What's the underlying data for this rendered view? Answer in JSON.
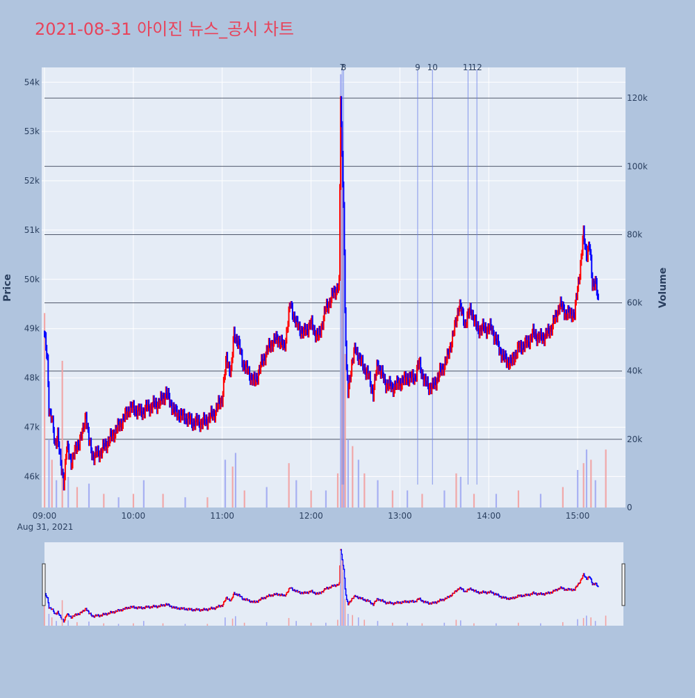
{
  "chart_title": "2021-08-31 아이진 뉴스_공시 차트",
  "colors": {
    "page_bg": "#b0c4de",
    "plot_bg": "#e5ecf6",
    "grid": "#ffffff",
    "title": "#e8435a",
    "up": "#ff0000",
    "down": "#0000ff",
    "axis_text": "#2a3f5f",
    "news_line": "#6a7fe8",
    "volume_hline": "#4d5568"
  },
  "chart_data": {
    "type": "candlestick",
    "title": "2021-08-31 아이진 뉴스_공시 차트",
    "ylabel": "Price",
    "y2label": "Volume",
    "date_label": "Aug 31, 2021",
    "x_ticks": [
      "09:00",
      "10:00",
      "11:00",
      "12:00",
      "13:00",
      "14:00",
      "15:00"
    ],
    "x_range": [
      "09:00",
      "15:30"
    ],
    "y_ticks": [
      "46k",
      "47k",
      "48k",
      "49k",
      "50k",
      "51k",
      "52k",
      "53k",
      "54k"
    ],
    "y_tick_values": [
      46000,
      47000,
      48000,
      49000,
      50000,
      51000,
      52000,
      53000,
      54000
    ],
    "ylim": [
      45370,
      54300
    ],
    "y2_ticks": [
      "0",
      "20k",
      "40k",
      "60k",
      "80k",
      "100k",
      "120k"
    ],
    "y2_tick_values": [
      0,
      20000,
      40000,
      60000,
      80000,
      100000,
      120000
    ],
    "y2lim": [
      0,
      129000
    ],
    "grid": true,
    "news_markers": [
      {
        "label": "7",
        "time": "12:21"
      },
      {
        "label": "8",
        "time": "12:22"
      },
      {
        "label": "9",
        "time": "13:12"
      },
      {
        "label": "10",
        "time": "13:22"
      },
      {
        "label": "11",
        "time": "13:46"
      },
      {
        "label": "12",
        "time": "13:52"
      }
    ],
    "price_path": [
      [
        "09:00",
        48900
      ],
      [
        "09:02",
        48300
      ],
      [
        "09:03",
        47400
      ],
      [
        "09:05",
        47200
      ],
      [
        "09:07",
        46600
      ],
      [
        "09:09",
        46900
      ],
      [
        "09:11",
        46200
      ],
      [
        "09:13",
        45900
      ],
      [
        "09:15",
        46600
      ],
      [
        "09:18",
        46300
      ],
      [
        "09:22",
        46600
      ],
      [
        "09:26",
        46900
      ],
      [
        "09:28",
        47300
      ],
      [
        "09:30",
        46700
      ],
      [
        "09:33",
        46400
      ],
      [
        "09:38",
        46500
      ],
      [
        "09:45",
        46800
      ],
      [
        "09:52",
        47100
      ],
      [
        "09:58",
        47400
      ],
      [
        "10:05",
        47300
      ],
      [
        "10:10",
        47400
      ],
      [
        "10:18",
        47500
      ],
      [
        "10:22",
        47700
      ],
      [
        "10:28",
        47300
      ],
      [
        "10:35",
        47200
      ],
      [
        "10:40",
        47100
      ],
      [
        "10:48",
        47100
      ],
      [
        "10:55",
        47300
      ],
      [
        "11:00",
        47600
      ],
      [
        "11:03",
        48400
      ],
      [
        "11:06",
        48100
      ],
      [
        "11:08",
        48900
      ],
      [
        "11:11",
        48700
      ],
      [
        "11:14",
        48300
      ],
      [
        "11:18",
        48100
      ],
      [
        "11:22",
        47900
      ],
      [
        "11:28",
        48400
      ],
      [
        "11:33",
        48700
      ],
      [
        "11:38",
        48800
      ],
      [
        "11:42",
        48600
      ],
      [
        "11:46",
        49500
      ],
      [
        "11:50",
        49100
      ],
      [
        "11:55",
        48900
      ],
      [
        "12:00",
        49100
      ],
      [
        "12:05",
        48800
      ],
      [
        "12:10",
        49400
      ],
      [
        "12:15",
        49700
      ],
      [
        "12:19",
        49900
      ],
      [
        "12:20",
        53700
      ],
      [
        "12:21",
        52500
      ],
      [
        "12:22",
        51600
      ],
      [
        "12:23",
        49400
      ],
      [
        "12:24",
        48100
      ],
      [
        "12:25",
        47700
      ],
      [
        "12:27",
        48200
      ],
      [
        "12:30",
        48600
      ],
      [
        "12:34",
        48300
      ],
      [
        "12:38",
        48100
      ],
      [
        "12:42",
        47700
      ],
      [
        "12:45",
        48300
      ],
      [
        "12:50",
        47900
      ],
      [
        "12:55",
        47800
      ],
      [
        "13:00",
        47900
      ],
      [
        "13:05",
        48000
      ],
      [
        "13:10",
        48000
      ],
      [
        "13:13",
        48300
      ],
      [
        "13:17",
        47900
      ],
      [
        "13:22",
        47800
      ],
      [
        "13:27",
        48100
      ],
      [
        "13:32",
        48400
      ],
      [
        "13:37",
        49000
      ],
      [
        "13:40",
        49500
      ],
      [
        "13:44",
        49100
      ],
      [
        "13:48",
        49400
      ],
      [
        "13:52",
        49000
      ],
      [
        "13:58",
        49000
      ],
      [
        "14:02",
        49000
      ],
      [
        "14:07",
        48600
      ],
      [
        "14:10",
        48400
      ],
      [
        "14:15",
        48300
      ],
      [
        "14:20",
        48600
      ],
      [
        "14:26",
        48700
      ],
      [
        "14:30",
        48900
      ],
      [
        "14:35",
        48800
      ],
      [
        "14:40",
        48900
      ],
      [
        "14:45",
        49200
      ],
      [
        "14:48",
        49500
      ],
      [
        "14:52",
        49300
      ],
      [
        "14:58",
        49300
      ],
      [
        "15:00",
        49800
      ],
      [
        "15:02",
        50300
      ],
      [
        "15:04",
        50900
      ],
      [
        "15:06",
        50500
      ],
      [
        "15:08",
        50700
      ],
      [
        "15:10",
        49900
      ],
      [
        "15:12",
        50000
      ],
      [
        "15:14",
        49500
      ]
    ],
    "volume_bars": [
      [
        "09:00",
        57000
      ],
      [
        "09:03",
        20000
      ],
      [
        "09:05",
        14000
      ],
      [
        "09:08",
        8000
      ],
      [
        "09:12",
        43000
      ],
      [
        "09:16",
        9000
      ],
      [
        "09:22",
        6000
      ],
      [
        "09:30",
        7000
      ],
      [
        "09:40",
        4000
      ],
      [
        "09:50",
        3000
      ],
      [
        "10:00",
        4000
      ],
      [
        "10:07",
        8000
      ],
      [
        "10:20",
        4000
      ],
      [
        "10:35",
        3000
      ],
      [
        "10:50",
        3000
      ],
      [
        "11:02",
        14000
      ],
      [
        "11:07",
        12000
      ],
      [
        "11:09",
        16000
      ],
      [
        "11:15",
        5000
      ],
      [
        "11:30",
        6000
      ],
      [
        "11:45",
        13000
      ],
      [
        "11:50",
        8000
      ],
      [
        "12:00",
        5000
      ],
      [
        "12:10",
        5000
      ],
      [
        "12:18",
        10000
      ],
      [
        "12:20",
        127000
      ],
      [
        "12:21",
        110000
      ],
      [
        "12:22",
        90000
      ],
      [
        "12:23",
        45000
      ],
      [
        "12:25",
        20000
      ],
      [
        "12:28",
        18000
      ],
      [
        "12:32",
        14000
      ],
      [
        "12:36",
        10000
      ],
      [
        "12:45",
        8000
      ],
      [
        "12:55",
        5000
      ],
      [
        "13:05",
        5000
      ],
      [
        "13:15",
        4000
      ],
      [
        "13:30",
        5000
      ],
      [
        "13:38",
        10000
      ],
      [
        "13:41",
        9000
      ],
      [
        "13:50",
        4000
      ],
      [
        "14:05",
        4000
      ],
      [
        "14:20",
        5000
      ],
      [
        "14:35",
        4000
      ],
      [
        "14:50",
        6000
      ],
      [
        "15:00",
        11000
      ],
      [
        "15:04",
        13000
      ],
      [
        "15:06",
        17000
      ],
      [
        "15:09",
        14000
      ],
      [
        "15:12",
        8000
      ],
      [
        "15:19",
        17000
      ]
    ]
  }
}
